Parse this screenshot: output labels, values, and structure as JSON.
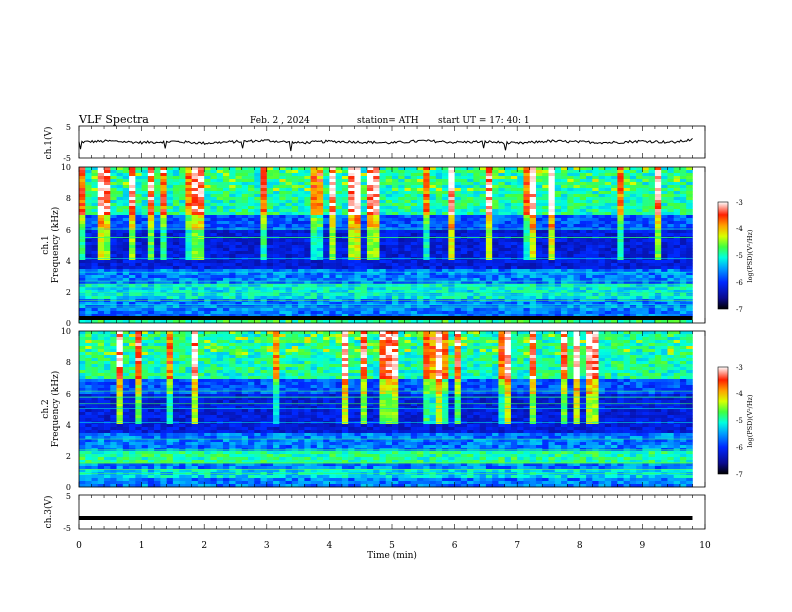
{
  "header": {
    "title": "VLF  Spectra",
    "date": "Feb. 2  , 2024",
    "station": "station= ATH",
    "start": "start  UT  =   17: 40: 1"
  },
  "colors": {
    "background": "#ffffff",
    "frame": "#000000",
    "colormap": [
      "#000000",
      "#0a0a8c",
      "#0028ff",
      "#00a0ff",
      "#00ffe0",
      "#40ff40",
      "#d8ff00",
      "#ffa000",
      "#ff2000",
      "#ffffff"
    ]
  },
  "chart_data": [
    {
      "type": "line",
      "name": "ch1-waveform",
      "ylabel": "ch.1(V)",
      "ylim": [
        -5,
        5
      ],
      "yticks": [
        "5",
        "-5"
      ],
      "xlim": [
        0,
        10
      ],
      "x": [
        0,
        0.5,
        1,
        1.5,
        2,
        2.5,
        3,
        3.5,
        4,
        4.5,
        5,
        5.5,
        6,
        6.5,
        7,
        7.5,
        8,
        8.5,
        9,
        9.5,
        9.8
      ],
      "y": [
        0,
        0.3,
        -0.2,
        0.2,
        -0.4,
        0.1,
        0.5,
        -0.3,
        0.2,
        0,
        -0.3,
        0.4,
        -0.1,
        0.1,
        -0.5,
        0.3,
        0,
        -0.2,
        0.3,
        -0.1,
        0.8
      ]
    },
    {
      "type": "heatmap",
      "name": "ch1-spectrogram",
      "ylabel_channel": "ch.1",
      "ylabel": "Frequency  (kHz)",
      "ylim": [
        0,
        10
      ],
      "yticks": [
        "0",
        "2",
        "4",
        "6",
        "8",
        "10"
      ],
      "xlim": [
        0,
        10
      ],
      "data_end_min": 9.8,
      "colorbar": {
        "label": "log(PSD)(V²/Hz)",
        "range": [
          -7,
          -3
        ],
        "ticks": [
          "-3",
          "-4",
          "-5",
          "-6",
          "-7"
        ]
      }
    },
    {
      "type": "heatmap",
      "name": "ch2-spectrogram",
      "ylabel_channel": "ch.2",
      "ylabel": "Frequency  (kHz)",
      "ylim": [
        0,
        10
      ],
      "yticks": [
        "0",
        "2",
        "4",
        "6",
        "8",
        "10"
      ],
      "xlim": [
        0,
        10
      ],
      "data_end_min": 9.8,
      "colorbar": {
        "label": "log(PSD)(V²/Hz)",
        "range": [
          -7,
          -3
        ],
        "ticks": [
          "-3",
          "-4",
          "-5",
          "-6",
          "-7"
        ]
      }
    },
    {
      "type": "line",
      "name": "ch3-waveform",
      "ylabel": "ch.3(V)",
      "ylim": [
        -5,
        5
      ],
      "yticks": [
        "5",
        "-5"
      ],
      "xlim": [
        0,
        10
      ],
      "x": [
        0,
        9.8
      ],
      "y": [
        -2,
        -2
      ]
    }
  ],
  "xaxis": {
    "label": "Time  (min)",
    "ticks": [
      "0",
      "1",
      "2",
      "3",
      "4",
      "5",
      "6",
      "7",
      "8",
      "9",
      "10"
    ]
  }
}
